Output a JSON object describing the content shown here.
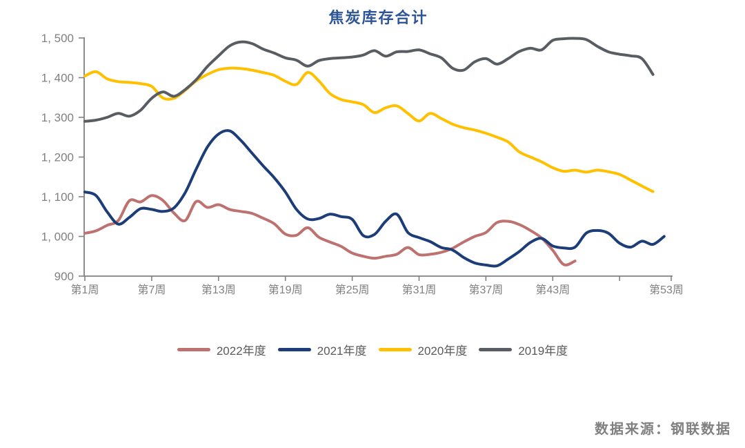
{
  "chart_data": {
    "type": "line",
    "title": "焦炭库存合计",
    "grid": "off",
    "legend_position": "bottom",
    "x_unit": "week",
    "x_range_weeks": [
      1,
      53
    ],
    "x_ticks": [
      {
        "week": 1,
        "label": "第1周"
      },
      {
        "week": 7,
        "label": "第7周"
      },
      {
        "week": 13,
        "label": "第13周"
      },
      {
        "week": 19,
        "label": "第19周"
      },
      {
        "week": 25,
        "label": "第25周"
      },
      {
        "week": 31,
        "label": "第31周"
      },
      {
        "week": 37,
        "label": "第37周"
      },
      {
        "week": 43,
        "label": "第43周"
      },
      {
        "week": 49,
        "label": ""
      },
      {
        "week": 53,
        "label": "第53周",
        "at_axis_end": true
      }
    ],
    "y_range": [
      900,
      1500
    ],
    "y_ticks": [
      {
        "value": 900,
        "label": "900"
      },
      {
        "value": 1000,
        "label": "1, 000"
      },
      {
        "value": 1100,
        "label": "1, 100"
      },
      {
        "value": 1200,
        "label": "1, 200"
      },
      {
        "value": 1300,
        "label": "1, 300"
      },
      {
        "value": 1400,
        "label": "1, 400"
      },
      {
        "value": 1500,
        "label": "1, 500"
      }
    ],
    "series": [
      {
        "name": "2022年度",
        "color": "#bd7270",
        "start_week": 1,
        "values": [
          1008,
          1014,
          1028,
          1040,
          1090,
          1087,
          1103,
          1091,
          1059,
          1040,
          1088,
          1073,
          1080,
          1068,
          1063,
          1058,
          1046,
          1032,
          1006,
          1003,
          1022,
          998,
          986,
          975,
          958,
          950,
          945,
          950,
          955,
          972,
          954,
          955,
          960,
          970,
          986,
          1000,
          1010,
          1035,
          1038,
          1030,
          1015,
          996,
          965,
          929,
          938
        ]
      },
      {
        "name": "2021年度",
        "color": "#1c3d78",
        "start_week": 1,
        "values": [
          1112,
          1103,
          1062,
          1031,
          1048,
          1070,
          1068,
          1063,
          1072,
          1110,
          1170,
          1225,
          1258,
          1266,
          1242,
          1210,
          1178,
          1148,
          1112,
          1068,
          1044,
          1045,
          1056,
          1050,
          1043,
          1002,
          1005,
          1038,
          1056,
          1010,
          997,
          987,
          972,
          966,
          947,
          933,
          928,
          926,
          943,
          962,
          985,
          995,
          976,
          971,
          973,
          1008,
          1015,
          1008,
          983,
          973,
          988,
          980,
          1000
        ]
      },
      {
        "name": "2020年度",
        "color": "#ffc000",
        "start_week": 1,
        "values": [
          1404,
          1415,
          1397,
          1390,
          1388,
          1385,
          1378,
          1349,
          1348,
          1368,
          1392,
          1408,
          1420,
          1424,
          1423,
          1419,
          1413,
          1406,
          1391,
          1383,
          1413,
          1392,
          1360,
          1345,
          1339,
          1332,
          1312,
          1324,
          1329,
          1310,
          1291,
          1310,
          1297,
          1283,
          1274,
          1268,
          1260,
          1250,
          1238,
          1213,
          1200,
          1188,
          1173,
          1164,
          1167,
          1162,
          1167,
          1163,
          1156,
          1142,
          1127,
          1113
        ]
      },
      {
        "name": "2019年度",
        "color": "#585d63",
        "start_week": 1,
        "values": [
          1290,
          1293,
          1300,
          1310,
          1303,
          1318,
          1348,
          1364,
          1353,
          1370,
          1395,
          1428,
          1455,
          1480,
          1490,
          1486,
          1472,
          1462,
          1450,
          1444,
          1429,
          1443,
          1448,
          1450,
          1452,
          1457,
          1468,
          1454,
          1465,
          1466,
          1470,
          1460,
          1450,
          1424,
          1419,
          1440,
          1448,
          1434,
          1448,
          1466,
          1474,
          1470,
          1494,
          1498,
          1499,
          1496,
          1479,
          1465,
          1459,
          1455,
          1448,
          1408
        ]
      }
    ]
  },
  "colors": {
    "title": "#2e5597",
    "axis": "#808080",
    "tick_label": "#808080",
    "legend_text": "#595959",
    "source_text": "#808080",
    "background": "#ffffff"
  },
  "source_note": "数据来源：钢联数据"
}
